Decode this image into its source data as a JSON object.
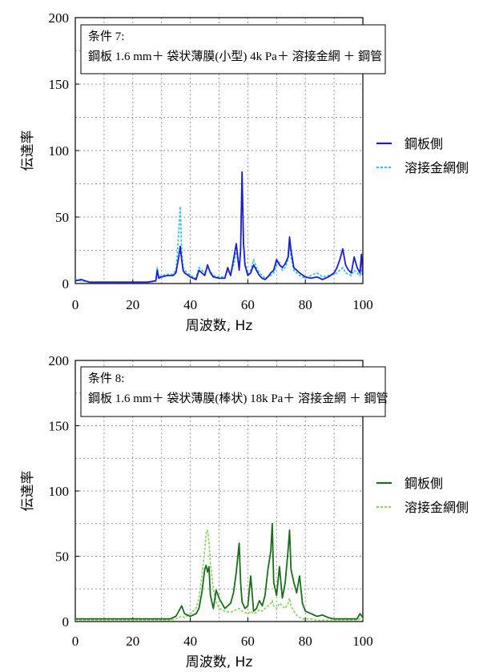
{
  "chart_data": [
    {
      "type": "line",
      "title": "",
      "xlabel": "周波数, Hz",
      "ylabel": "伝達率",
      "xlim": [
        0,
        100
      ],
      "ylim": [
        0,
        200
      ],
      "xticks": [
        "0",
        "20",
        "40",
        "60",
        "80",
        "100"
      ],
      "yticks": [
        "0",
        "50",
        "100",
        "150",
        "200"
      ],
      "grid": true,
      "legend_position": "right",
      "annotation": [
        "条件 7:",
        "鋼板 1.6 mm＋ 袋状薄膜(小型) 4k Pa＋ 溶接金網 ＋ 鋼管"
      ],
      "colors": [
        "#1f1fc8",
        "#33c3e8"
      ],
      "series": [
        {
          "name": "鋼板側",
          "style": "solid",
          "x": [
            0,
            2,
            5,
            10,
            15,
            20,
            25,
            28,
            28.5,
            29,
            30,
            32,
            34,
            35,
            35.5,
            36,
            36.5,
            37,
            37.5,
            38,
            40,
            42,
            43,
            45,
            46,
            47,
            48,
            50,
            52,
            53,
            54,
            55,
            56,
            57,
            57.5,
            58,
            58.5,
            59,
            60,
            61,
            62,
            63,
            64,
            65,
            66,
            67,
            68,
            69,
            70,
            71,
            72,
            73,
            74,
            74.5,
            75,
            76,
            78,
            80,
            82,
            84,
            86,
            88,
            90,
            91,
            92,
            93,
            94,
            95,
            96,
            97,
            98,
            99,
            99.5,
            100
          ],
          "y": [
            2,
            3,
            1,
            1,
            1,
            1,
            1,
            2,
            10,
            4,
            5,
            6,
            6,
            8,
            14,
            20,
            28,
            18,
            10,
            8,
            5,
            3,
            10,
            6,
            14,
            8,
            5,
            4,
            4,
            12,
            6,
            18,
            30,
            10,
            25,
            84,
            30,
            14,
            6,
            8,
            14,
            10,
            6,
            4,
            3,
            5,
            8,
            10,
            18,
            14,
            12,
            15,
            20,
            35,
            25,
            12,
            8,
            5,
            4,
            5,
            3,
            5,
            8,
            12,
            18,
            26,
            14,
            10,
            8,
            20,
            12,
            8,
            22,
            6
          ]
        },
        {
          "name": "溶接金網側",
          "style": "dashed",
          "x": [
            0,
            2,
            5,
            10,
            15,
            20,
            25,
            28,
            28.5,
            29,
            30,
            32,
            34,
            35,
            35.5,
            36,
            36.5,
            37,
            37.5,
            38,
            40,
            42,
            43,
            45,
            46,
            47,
            48,
            50,
            52,
            53,
            54,
            55,
            56,
            57,
            57.5,
            58,
            58.5,
            59,
            60,
            61,
            62,
            63,
            64,
            65,
            66,
            67,
            68,
            69,
            70,
            71,
            72,
            73,
            74,
            74.5,
            75,
            76,
            78,
            80,
            82,
            84,
            86,
            88,
            90,
            91,
            92,
            93,
            94,
            95,
            96,
            97,
            98,
            99,
            99.5,
            100
          ],
          "y": [
            3,
            2,
            1,
            1,
            1,
            1,
            1,
            2,
            12,
            5,
            6,
            7,
            7,
            10,
            22,
            40,
            58,
            25,
            12,
            10,
            6,
            4,
            12,
            8,
            12,
            9,
            6,
            5,
            5,
            10,
            7,
            14,
            24,
            12,
            28,
            82,
            32,
            16,
            7,
            10,
            18,
            12,
            8,
            6,
            4,
            5,
            6,
            8,
            14,
            16,
            10,
            12,
            18,
            30,
            20,
            10,
            6,
            4,
            6,
            8,
            5,
            6,
            7,
            8,
            10,
            12,
            8,
            7,
            6,
            10,
            8,
            6,
            10,
            5
          ]
        }
      ]
    },
    {
      "type": "line",
      "title": "",
      "xlabel": "周波数, Hz",
      "ylabel": "伝達率",
      "xlim": [
        0,
        100
      ],
      "ylim": [
        0,
        200
      ],
      "xticks": [
        "0",
        "20",
        "40",
        "60",
        "80",
        "100"
      ],
      "yticks": [
        "0",
        "50",
        "100",
        "150",
        "200"
      ],
      "grid": true,
      "legend_position": "right",
      "annotation": [
        "条件 8:",
        "鋼板 1.6 mm＋ 袋状薄膜(棒状) 18k Pa＋ 溶接金網 ＋ 鋼管"
      ],
      "colors": [
        "#1a6e1a",
        "#8ed46a"
      ],
      "series": [
        {
          "name": "鋼板側",
          "style": "solid",
          "x": [
            0,
            5,
            10,
            15,
            20,
            25,
            30,
            33,
            35,
            36,
            37,
            38,
            40,
            42,
            43,
            44,
            45,
            45.5,
            46,
            46.5,
            47,
            48,
            49,
            50,
            52,
            54,
            55,
            56,
            57,
            57.5,
            58,
            59,
            60,
            61,
            62,
            63,
            64,
            65,
            66,
            67,
            68,
            68.5,
            69,
            70,
            71,
            72,
            73,
            74,
            74.5,
            75,
            76,
            77,
            78,
            79,
            80,
            82,
            84,
            86,
            88,
            90,
            92,
            94,
            96,
            98,
            99,
            100
          ],
          "y": [
            2,
            2,
            2,
            2,
            2,
            2,
            2,
            2,
            4,
            8,
            12,
            6,
            4,
            6,
            10,
            22,
            40,
            43,
            38,
            42,
            20,
            10,
            24,
            18,
            10,
            14,
            22,
            38,
            60,
            30,
            15,
            10,
            12,
            35,
            8,
            10,
            16,
            12,
            20,
            40,
            54,
            75,
            30,
            20,
            42,
            18,
            30,
            55,
            70,
            40,
            30,
            22,
            35,
            14,
            8,
            6,
            4,
            5,
            3,
            2,
            2,
            2,
            2,
            2,
            6,
            3
          ]
        },
        {
          "name": "溶接金網側",
          "style": "dashed",
          "x": [
            0,
            5,
            10,
            15,
            20,
            25,
            30,
            33,
            35,
            36,
            37,
            38,
            40,
            42,
            43,
            44,
            45,
            45.5,
            46,
            46.5,
            47,
            48,
            49,
            50,
            52,
            54,
            55,
            56,
            57,
            57.5,
            58,
            59,
            60,
            61,
            62,
            63,
            64,
            65,
            66,
            67,
            68,
            68.5,
            69,
            70,
            71,
            72,
            73,
            74,
            74.5,
            75,
            76,
            77,
            78,
            79,
            80,
            82,
            84,
            86,
            88,
            90,
            92,
            94,
            96,
            98,
            99,
            100
          ],
          "y": [
            1,
            1,
            1,
            1,
            1,
            1,
            1,
            1,
            2,
            3,
            4,
            3,
            6,
            10,
            18,
            35,
            55,
            68,
            70,
            60,
            45,
            25,
            15,
            10,
            8,
            7,
            8,
            9,
            10,
            9,
            8,
            7,
            6,
            8,
            6,
            7,
            9,
            8,
            10,
            12,
            14,
            16,
            12,
            10,
            14,
            12,
            10,
            14,
            18,
            12,
            8,
            5,
            3,
            2,
            2,
            2,
            1,
            1,
            1,
            1,
            1,
            1,
            1,
            1,
            2,
            2
          ]
        }
      ]
    }
  ]
}
